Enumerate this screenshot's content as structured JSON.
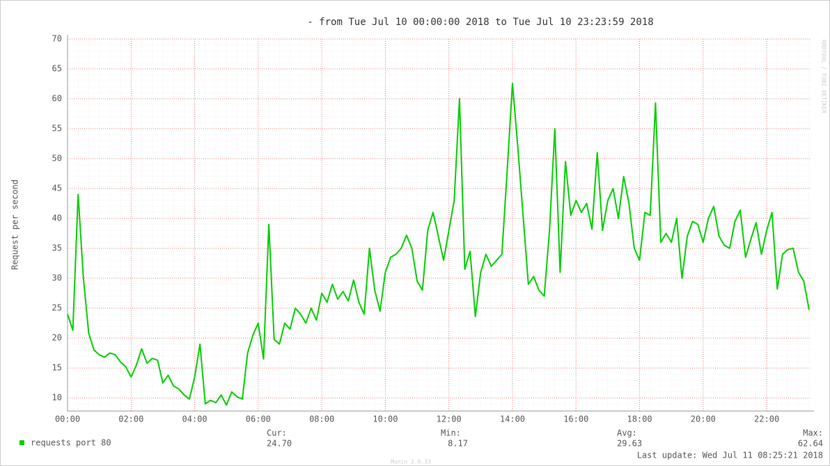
{
  "chart_data": {
    "type": "line",
    "title": "- from Tue Jul 10 00:00:00 2018 to Tue Jul 10 23:23:59 2018",
    "y_label": "Request per second",
    "xlim": [
      "00:00:00",
      "23:23:59"
    ],
    "xticks": [
      "00:00",
      "02:00",
      "04:00",
      "06:00",
      "08:00",
      "10:00",
      "12:00",
      "14:00",
      "16:00",
      "18:00",
      "20:00",
      "22:00"
    ],
    "ylim": [
      7.8,
      70
    ],
    "yticks": [
      10,
      15,
      20,
      25,
      30,
      35,
      40,
      45,
      50,
      55,
      60,
      65,
      70
    ],
    "grid": true,
    "x": [
      "00:00",
      "00:10",
      "00:20",
      "00:30",
      "00:40",
      "00:50",
      "01:00",
      "01:10",
      "01:20",
      "01:30",
      "01:40",
      "01:50",
      "02:00",
      "02:10",
      "02:20",
      "02:30",
      "02:40",
      "02:50",
      "03:00",
      "03:10",
      "03:20",
      "03:30",
      "03:40",
      "03:50",
      "04:00",
      "04:10",
      "04:20",
      "04:30",
      "04:40",
      "04:50",
      "05:00",
      "05:10",
      "05:20",
      "05:30",
      "05:40",
      "05:50",
      "06:00",
      "06:10",
      "06:20",
      "06:30",
      "06:40",
      "06:50",
      "07:00",
      "07:10",
      "07:20",
      "07:30",
      "07:40",
      "07:50",
      "08:00",
      "08:10",
      "08:20",
      "08:30",
      "08:40",
      "08:50",
      "09:00",
      "09:10",
      "09:20",
      "09:30",
      "09:40",
      "09:50",
      "10:00",
      "10:10",
      "10:20",
      "10:30",
      "10:40",
      "10:50",
      "11:00",
      "11:10",
      "11:20",
      "11:30",
      "11:40",
      "11:50",
      "12:00",
      "12:10",
      "12:20",
      "12:30",
      "12:40",
      "12:50",
      "13:00",
      "13:10",
      "13:20",
      "13:30",
      "13:40",
      "13:50",
      "14:00",
      "14:10",
      "14:20",
      "14:30",
      "14:40",
      "14:50",
      "15:00",
      "15:10",
      "15:20",
      "15:30",
      "15:40",
      "15:50",
      "16:00",
      "16:10",
      "16:20",
      "16:30",
      "16:40",
      "16:50",
      "17:00",
      "17:10",
      "17:20",
      "17:30",
      "17:40",
      "17:50",
      "18:00",
      "18:10",
      "18:20",
      "18:30",
      "18:40",
      "18:50",
      "19:00",
      "19:10",
      "19:20",
      "19:30",
      "19:40",
      "19:50",
      "20:00",
      "20:10",
      "20:20",
      "20:30",
      "20:40",
      "20:50",
      "21:00",
      "21:10",
      "21:20",
      "21:30",
      "21:40",
      "21:50",
      "22:00",
      "22:10",
      "22:20",
      "22:30",
      "22:40",
      "22:50",
      "23:00",
      "23:10",
      "23:20"
    ],
    "series": [
      {
        "name": "requests port 80",
        "color": "#00cc00",
        "values": [
          24,
          21.3,
          44,
          30,
          20.8,
          18,
          17.2,
          16.8,
          17.5,
          17.2,
          16,
          15.2,
          13.5,
          15.5,
          18.2,
          15.8,
          16.6,
          16.3,
          12.5,
          13.8,
          12,
          11.5,
          10.5,
          9.8,
          13.5,
          19,
          9,
          9.6,
          9.2,
          10.5,
          8.8,
          11,
          10.2,
          9.8,
          17.5,
          20.5,
          22.5,
          16.5,
          39,
          19.8,
          19,
          22.5,
          21.5,
          25,
          24,
          22.5,
          25,
          23,
          27.5,
          26,
          29,
          26.5,
          27.8,
          26.2,
          29.7,
          26,
          24,
          35,
          28,
          24.5,
          31,
          33.5,
          34,
          35,
          37.2,
          35,
          29.5,
          28,
          38,
          41,
          37,
          33,
          38,
          43,
          60,
          31.5,
          34.5,
          23.6,
          31,
          34,
          32,
          33,
          34,
          48,
          62.6,
          52,
          40.5,
          29,
          30.3,
          28,
          27,
          38,
          55,
          31,
          49.5,
          40.5,
          43,
          41,
          42.5,
          38.2,
          51,
          38,
          43,
          45,
          40,
          47,
          42.5,
          35,
          33,
          41,
          40.5,
          59.3,
          36,
          37.5,
          36,
          40,
          30,
          37,
          39.5,
          39,
          36,
          40,
          42,
          37,
          35.5,
          35,
          39.5,
          41.4,
          33.5,
          36.5,
          39.3,
          34,
          38,
          41,
          28.2,
          34,
          34.8,
          35,
          31,
          29.5,
          24.7
        ]
      }
    ],
    "stats": [
      {
        "label": "Cur:",
        "value": "24.70"
      },
      {
        "label": "Min:",
        "value": "8.17"
      },
      {
        "label": "Avg:",
        "value": "29.63"
      },
      {
        "label": "Max:",
        "value": "62.64"
      }
    ],
    "last_update": "Last update: Wed Jul 11 08:25:21 2018",
    "footer": "Munin 2.0.33",
    "side_text": "RRDTOOL / TOBI OETIKER"
  }
}
